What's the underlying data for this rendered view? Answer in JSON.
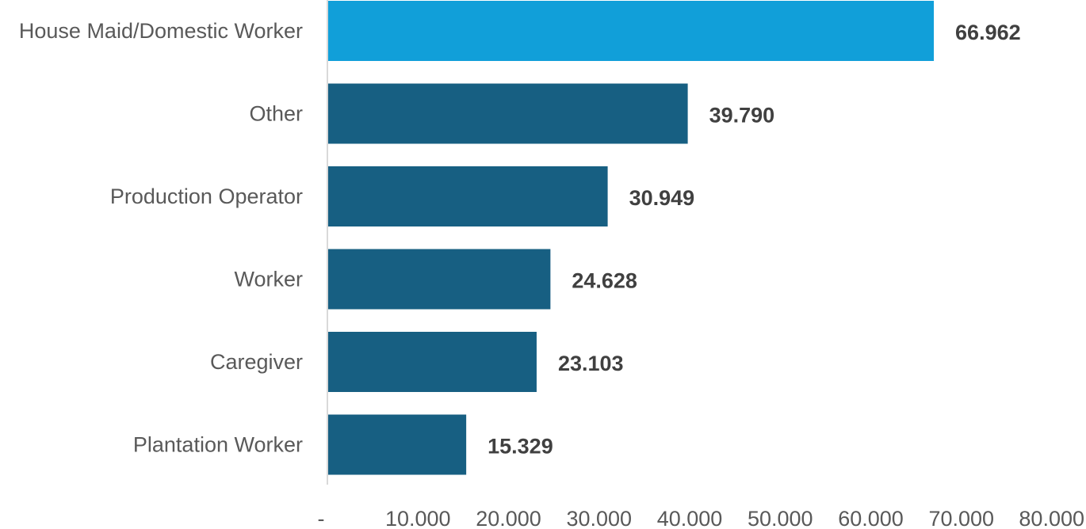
{
  "chart_data": {
    "type": "bar",
    "orientation": "horizontal",
    "categories": [
      "House Maid/Domestic Worker",
      "Other",
      "Production Operator",
      "Worker",
      "Caregiver",
      "Plantation Worker"
    ],
    "values": [
      66962,
      39790,
      30949,
      24628,
      23103,
      15329
    ],
    "value_labels": [
      "66.962",
      "39.790",
      "30.949",
      "24.628",
      "23.103",
      "15.329"
    ],
    "x_ticks": [
      0,
      10000,
      20000,
      30000,
      40000,
      50000,
      60000,
      70000,
      80000
    ],
    "x_tick_labels": [
      "-",
      "10.000",
      "20.000",
      "30.000",
      "40.000",
      "50.000",
      "60.000",
      "70.000",
      "80.000"
    ],
    "xlim": [
      0,
      80000
    ],
    "grid": false,
    "title": "",
    "xlabel": "",
    "ylabel": "",
    "colors": {
      "highlight": "#119FD9",
      "bar": "#175F82",
      "axis": "#D9D9D9",
      "category_text": "#595959",
      "value_text": "#404040"
    },
    "highlight_index": 0
  }
}
